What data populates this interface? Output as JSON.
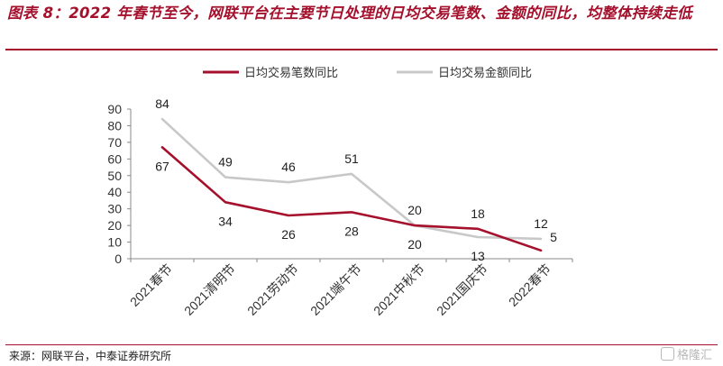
{
  "title": "图表 8：2022 年春节至今，网联平台在主要节日处理的日均交易笔数、金额的同比，均整体持续走低",
  "source": "来源：网联平台，中泰证券研究所",
  "watermark": "格隆汇",
  "colors": {
    "accent": "#a5102c",
    "series_count": "#a5102c",
    "series_amount": "#c8c8c8"
  },
  "chart_data": {
    "type": "line",
    "categories": [
      "2021春节",
      "2021清明节",
      "2021劳动节",
      "2021端午节",
      "2021中秋节",
      "2021国庆节",
      "2022春节"
    ],
    "series": [
      {
        "name": "日均交易笔数同比",
        "values": [
          67,
          34,
          26,
          28,
          20,
          18,
          5
        ]
      },
      {
        "name": "日均交易金额同比",
        "values": [
          84,
          49,
          46,
          51,
          20,
          13,
          12
        ]
      }
    ],
    "yticks": [
      0,
      10,
      20,
      30,
      40,
      50,
      60,
      70,
      80,
      90
    ],
    "ylim": [
      0,
      90
    ],
    "legend_position": "top-center",
    "grid": false
  }
}
